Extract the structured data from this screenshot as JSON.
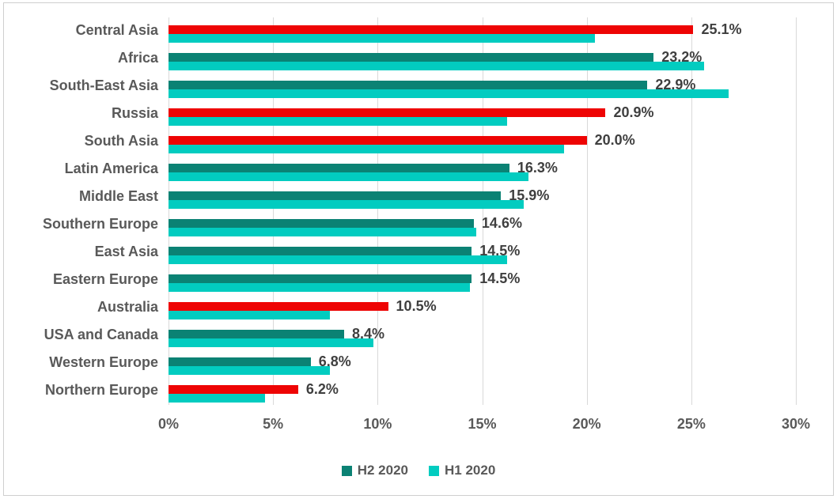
{
  "chart_data": {
    "type": "bar",
    "orientation": "horizontal",
    "title": "",
    "xlabel": "",
    "ylabel": "",
    "xlim": [
      0,
      30
    ],
    "grid": true,
    "tick_labels": [
      "0%",
      "5%",
      "10%",
      "15%",
      "20%",
      "25%",
      "30%"
    ],
    "tick_values": [
      0,
      5,
      10,
      15,
      20,
      25,
      30
    ],
    "legend_position": "bottom-center",
    "categories": [
      "Central Asia",
      "Africa",
      "South-East Asia",
      "Russia",
      "South Asia",
      "Latin America",
      "Middle East",
      "Southern Europe",
      "East Asia",
      "Eastern Europe",
      "Australia",
      "USA and Canada",
      "Western Europe",
      "Northern Europe"
    ],
    "series": [
      {
        "name": "H2 2020",
        "values": [
          25.1,
          23.2,
          22.9,
          20.9,
          20.0,
          16.3,
          15.9,
          14.6,
          14.5,
          14.5,
          10.5,
          8.4,
          6.8,
          6.2
        ],
        "default_color": "#0b8274",
        "highlight_color": "#ee0404",
        "bar_colors": [
          "#ee0404",
          "#0b8274",
          "#0b8274",
          "#ee0404",
          "#ee0404",
          "#0b8274",
          "#0b8274",
          "#0b8274",
          "#0b8274",
          "#0b8274",
          "#ee0404",
          "#0b8274",
          "#0b8274",
          "#ee0404"
        ]
      },
      {
        "name": "H1 2020",
        "values": [
          20.4,
          25.6,
          26.8,
          16.2,
          18.9,
          17.2,
          17.0,
          14.7,
          16.2,
          14.4,
          7.7,
          9.8,
          7.7,
          4.6
        ],
        "default_color": "#02ccc0",
        "bar_colors": [
          "#02ccc0",
          "#02ccc0",
          "#02ccc0",
          "#02ccc0",
          "#02ccc0",
          "#02ccc0",
          "#02ccc0",
          "#02ccc0",
          "#02ccc0",
          "#02ccc0",
          "#02ccc0",
          "#02ccc0",
          "#02ccc0",
          "#02ccc0"
        ]
      }
    ],
    "data_labels": [
      "25.1%",
      "23.2%",
      "22.9%",
      "20.9%",
      "20.0%",
      "16.3%",
      "15.9%",
      "14.6%",
      "14.5%",
      "14.5%",
      "10.5%",
      "8.4%",
      "6.8%",
      "6.2%"
    ],
    "data_label_series": "H2 2020",
    "legend": [
      {
        "label": "H2 2020",
        "color": "#0b8274"
      },
      {
        "label": "H1 2020",
        "color": "#02ccc0"
      }
    ],
    "colors": {
      "gridline": "#d9d9d9",
      "axis_text": "#595959",
      "category_text": "#595959",
      "data_label_text": "#3f3f3f",
      "chart_border": "#cfcfcf",
      "background": "#ffffff"
    }
  }
}
